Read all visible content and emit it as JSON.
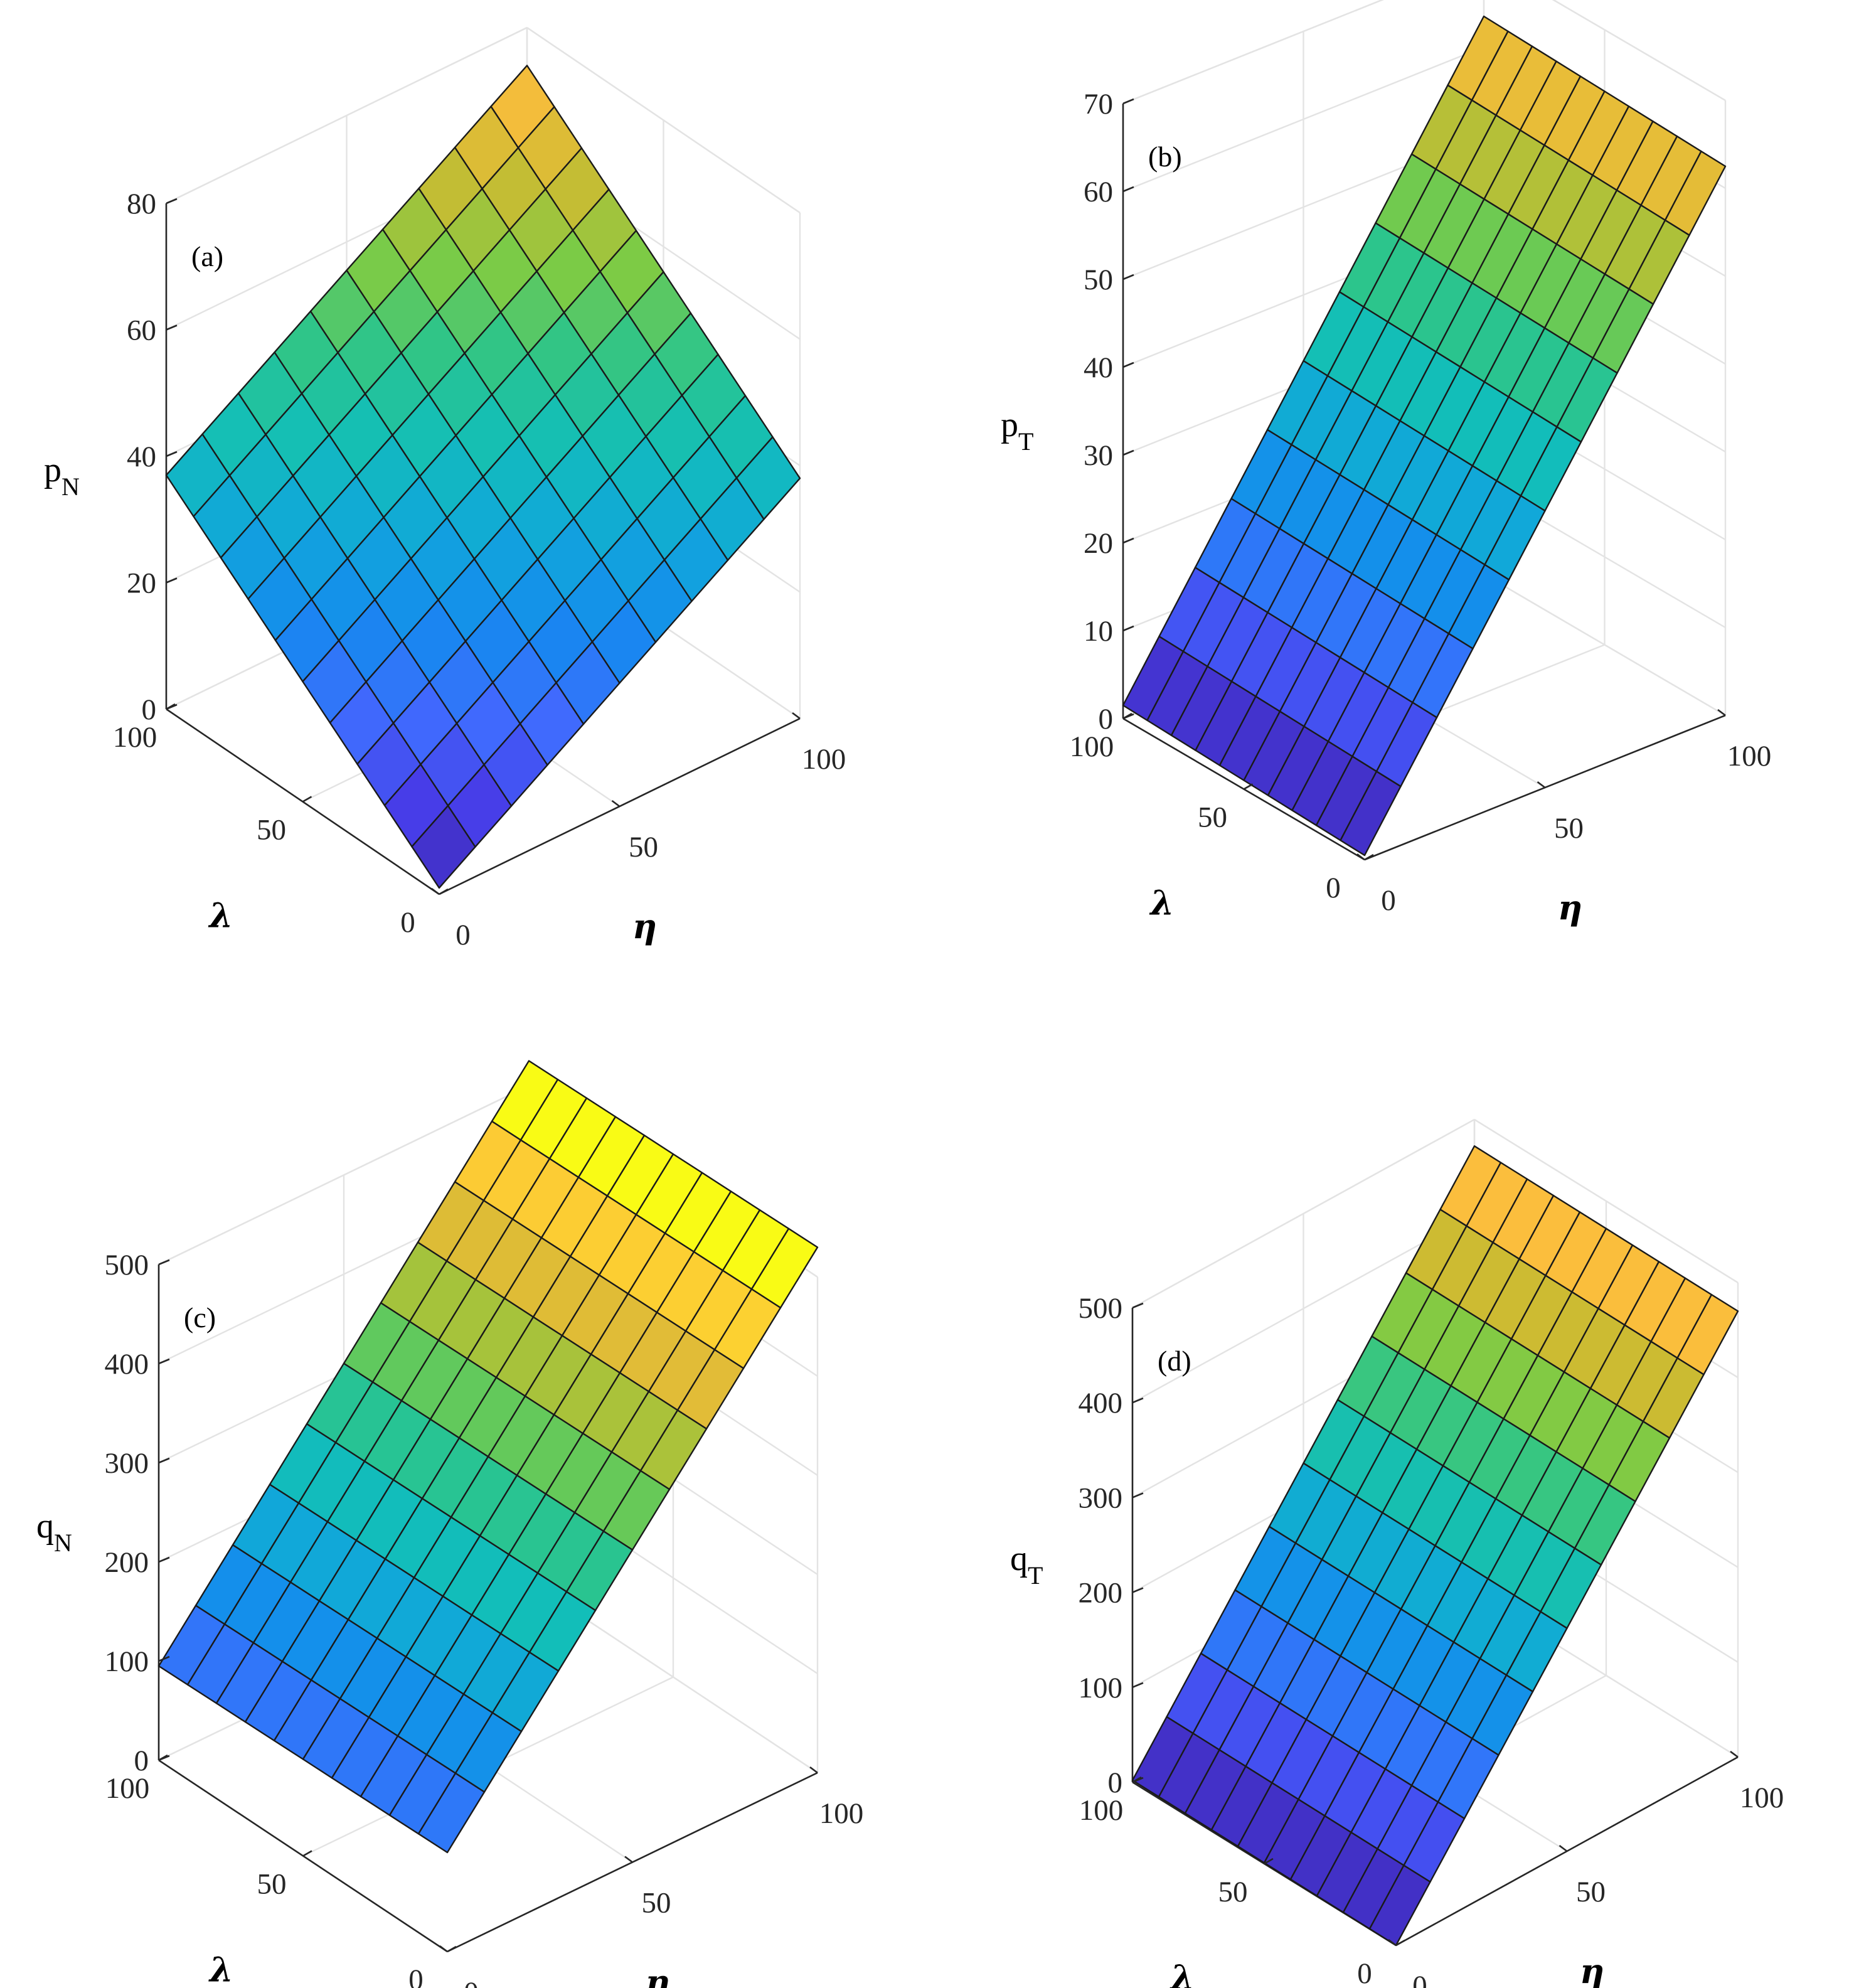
{
  "figure": {
    "panels": [
      "(a)",
      "(b)",
      "(c)",
      "(d)"
    ]
  },
  "chart_data": [
    {
      "type": "surface",
      "panel_label": "(a)",
      "zlabel": "p",
      "zlabel_sub": "N",
      "xlabel": "η",
      "ylabel": "λ",
      "x_range": [
        0,
        100
      ],
      "y_range": [
        0,
        100
      ],
      "zlim": [
        0,
        80
      ],
      "x_ticks": [
        "0",
        "50",
        "100"
      ],
      "y_ticks": [
        "0",
        "50",
        "100"
      ],
      "z_ticks": [
        "0",
        "20",
        "40",
        "60",
        "80"
      ],
      "grid": true,
      "x": [
        0,
        10,
        20,
        30,
        40,
        50,
        60,
        70,
        80,
        90,
        100
      ],
      "y": [
        0,
        10,
        20,
        30,
        40,
        50,
        60,
        70,
        80,
        90,
        100
      ],
      "z_model": "z = 1 + 0.37*eta + 0.36*lambda",
      "z_corners": {
        "eta0_lambda0": 1,
        "eta100_lambda0": 38,
        "eta0_lambda100": 37,
        "eta100_lambda100": 74
      }
    },
    {
      "type": "surface",
      "panel_label": "(b)",
      "zlabel": "p",
      "zlabel_sub": "T",
      "xlabel": "η",
      "ylabel": "λ",
      "x_range": [
        0,
        100
      ],
      "y_range": [
        0,
        100
      ],
      "zlim": [
        0,
        70
      ],
      "x_ticks": [
        "0",
        "50",
        "100"
      ],
      "y_ticks": [
        "0",
        "50",
        "100"
      ],
      "z_ticks": [
        "0",
        "10",
        "20",
        "30",
        "40",
        "50",
        "60",
        "70"
      ],
      "grid": true,
      "x": [
        0,
        10,
        20,
        30,
        40,
        50,
        60,
        70,
        80,
        90,
        100
      ],
      "y": [
        0,
        10,
        20,
        30,
        40,
        50,
        60,
        70,
        80,
        90,
        100
      ],
      "z_model": "z = 0.5 + 0.62*eta + 0.01*lambda",
      "z_corners": {
        "eta0_lambda0": 0.5,
        "eta100_lambda0": 62.5,
        "eta0_lambda100": 1.5,
        "eta100_lambda100": 63.5
      }
    },
    {
      "type": "surface",
      "panel_label": "(c)",
      "zlabel": "q",
      "zlabel_sub": "N",
      "xlabel": "η",
      "ylabel": "λ",
      "x_range": [
        0,
        100
      ],
      "y_range": [
        0,
        100
      ],
      "zlim": [
        0,
        500
      ],
      "x_ticks": [
        "0",
        "50",
        "100"
      ],
      "y_ticks": [
        "0",
        "50",
        "100"
      ],
      "z_ticks": [
        "0",
        "100",
        "200",
        "300",
        "400",
        "500"
      ],
      "grid": true,
      "x": [
        0,
        10,
        20,
        30,
        40,
        50,
        60,
        70,
        80,
        90,
        100
      ],
      "y": [
        0,
        10,
        20,
        30,
        40,
        50,
        60,
        70,
        80,
        90,
        100
      ],
      "z_model": "z = 100 + 4.3*eta - 0.05*lambda",
      "z_corners": {
        "eta0_lambda0": 100,
        "eta100_lambda0": 530,
        "eta0_lambda100": 95,
        "eta100_lambda100": 525
      }
    },
    {
      "type": "surface",
      "panel_label": "(d)",
      "zlabel": "q",
      "zlabel_sub": "T",
      "xlabel": "η",
      "ylabel": "λ",
      "x_range": [
        0,
        100
      ],
      "y_range": [
        0,
        100
      ],
      "zlim": [
        0,
        500
      ],
      "x_ticks": [
        "0",
        "50",
        "100"
      ],
      "y_ticks": [
        "0",
        "50",
        "100"
      ],
      "z_ticks": [
        "0",
        "100",
        "200",
        "300",
        "400",
        "500"
      ],
      "grid": true,
      "x": [
        0,
        10,
        20,
        30,
        40,
        50,
        60,
        70,
        80,
        90,
        100
      ],
      "y": [
        0,
        10,
        20,
        30,
        40,
        50,
        60,
        70,
        80,
        90,
        100
      ],
      "z_model": "z = 4.7*eta + 0.02*lambda",
      "z_corners": {
        "eta0_lambda0": 0,
        "eta100_lambda0": 470,
        "eta0_lambda100": 2,
        "eta100_lambda100": 472
      }
    }
  ]
}
